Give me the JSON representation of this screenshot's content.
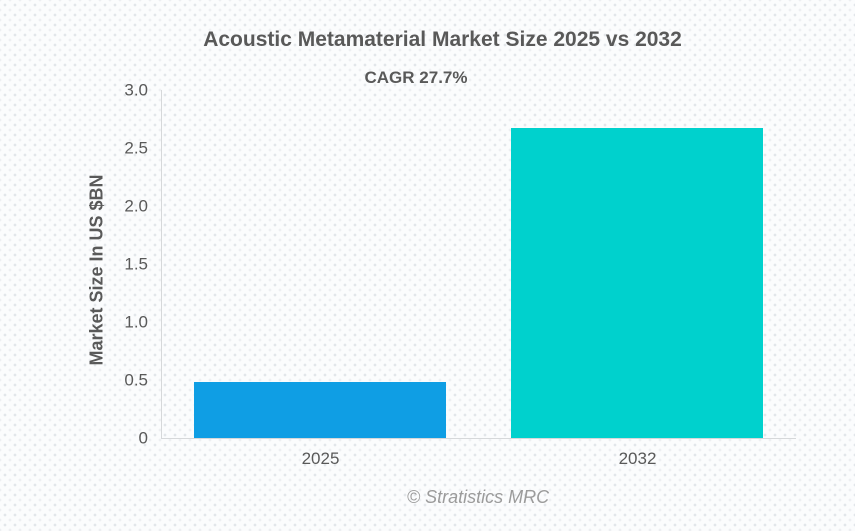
{
  "chart_data": {
    "type": "bar",
    "title": "Acoustic Metamaterial Market Size 2025 vs 2032",
    "subtitle": "CAGR 27.7%",
    "ylabel": "Market Size In US $BN",
    "xlabel": "",
    "categories": [
      "2025",
      "2032"
    ],
    "values": [
      0.48,
      2.67
    ],
    "bar_colors": [
      "#0f9ee4",
      "#00d1cd"
    ],
    "ylim": [
      0,
      3.0
    ],
    "yticks": [
      0,
      0.5,
      1.0,
      1.5,
      2.0,
      2.5,
      3.0
    ],
    "ytick_labels": [
      "0",
      "0.5",
      "1.0",
      "1.5",
      "2.0",
      "2.5",
      "3.0"
    ],
    "grid": false,
    "legend_position": "none",
    "axis_color": "#d6d8da",
    "text_color": "#595959",
    "source": "© Stratistics MRC"
  }
}
